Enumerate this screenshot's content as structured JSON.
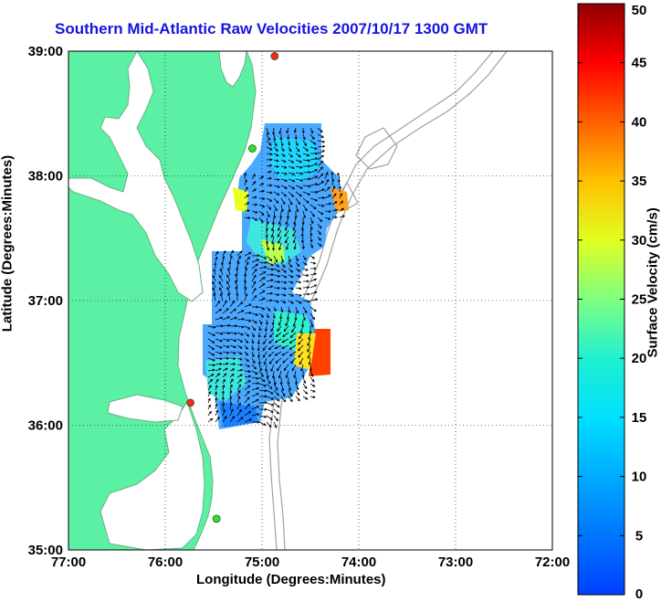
{
  "title": "Southern Mid-Atlantic Raw Velocities 2007/10/17 1300 GMT",
  "x_axis": {
    "label": "Longitude (Degrees:Minutes)",
    "ticks": [
      "77:00",
      "76:00",
      "75:00",
      "74:00",
      "73:00",
      "72:00"
    ],
    "range": [
      -77,
      -72
    ]
  },
  "y_axis": {
    "label": "Latitude (Degrees:Minutes)",
    "ticks": [
      "39:00",
      "38:00",
      "37:00",
      "36:00",
      "35:00"
    ],
    "range": [
      35,
      39
    ]
  },
  "colorbar": {
    "label": "Surface Velocity (cm/s)",
    "ticks": [
      "0",
      "5",
      "10",
      "15",
      "20",
      "25",
      "30",
      "35",
      "40",
      "45",
      "50"
    ],
    "range": [
      0,
      50
    ],
    "colormap": "jet"
  },
  "colors": {
    "land": "#5cf0a4",
    "coast": "#66b380",
    "bathymetry": "#a0a0a0",
    "title": "#1515e0",
    "site_red": "#ff2020",
    "site_green": "#30e030"
  },
  "grid": true,
  "stations": [
    {
      "lon": -74.87,
      "lat": 38.96,
      "color": "red"
    },
    {
      "lon": -75.1,
      "lat": 38.22,
      "color": "green"
    },
    {
      "lon": -75.74,
      "lat": 36.18,
      "color": "red"
    },
    {
      "lon": -75.47,
      "lat": 35.25,
      "color": "green"
    }
  ]
}
